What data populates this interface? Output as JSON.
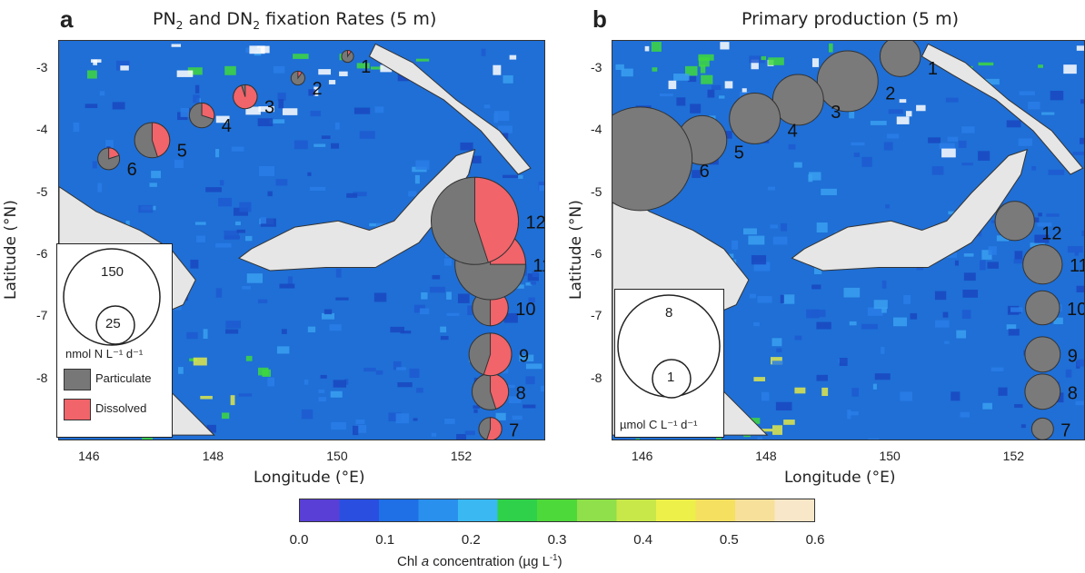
{
  "colors": {
    "ocean": "#1f6fd6",
    "ocean_dark": "#1a4fc4",
    "land": "#e6e6e6",
    "particulate": "#777777",
    "dissolved": "#f0646a",
    "bubble_b": "#7a7a7a"
  },
  "panel_a": {
    "letter": "a",
    "title_pre": "PN",
    "title_sub1": "2",
    "title_mid": " and DN",
    "title_sub2": "2",
    "title_post": " fixation Rates (5 m)",
    "x_axis_label": "Longitude (°E)",
    "y_axis_label": "Latitude (°N)",
    "x_ticks": [
      "146",
      "148",
      "150",
      "152"
    ],
    "y_ticks": [
      "-3",
      "-4",
      "-5",
      "-6",
      "-7",
      "-8"
    ],
    "legend": {
      "big_value": "150",
      "small_value": "25",
      "unit": "nmol  N L⁻¹ d⁻¹",
      "particulate_label": "Particulate",
      "dissolved_label": "Dissolved"
    },
    "stations": [
      {
        "id": "1",
        "lon": 150.15,
        "lat": -2.8,
        "total": 3,
        "dissolved_frac": 0.1
      },
      {
        "id": "2",
        "lon": 149.35,
        "lat": -3.15,
        "total": 4,
        "dissolved_frac": 0.1
      },
      {
        "id": "3",
        "lon": 148.5,
        "lat": -3.45,
        "total": 12,
        "dissolved_frac": 0.95
      },
      {
        "id": "4",
        "lon": 147.8,
        "lat": -3.75,
        "total": 13,
        "dissolved_frac": 0.3
      },
      {
        "id": "5",
        "lon": 147.0,
        "lat": -4.15,
        "total": 26,
        "dissolved_frac": 0.45
      },
      {
        "id": "6",
        "lon": 146.3,
        "lat": -4.45,
        "total": 10,
        "dissolved_frac": 0.2
      },
      {
        "id": "7",
        "lon": 152.45,
        "lat": -8.8,
        "total": 11,
        "dissolved_frac": 0.55
      },
      {
        "id": "8",
        "lon": 152.45,
        "lat": -8.2,
        "total": 28,
        "dissolved_frac": 0.45
      },
      {
        "id": "9",
        "lon": 152.45,
        "lat": -7.6,
        "total": 38,
        "dissolved_frac": 0.55
      },
      {
        "id": "10",
        "lon": 152.45,
        "lat": -6.85,
        "total": 27,
        "dissolved_frac": 0.5
      },
      {
        "id": "11",
        "lon": 152.45,
        "lat": -6.15,
        "total": 105,
        "dissolved_frac": 0.25
      },
      {
        "id": "12",
        "lon": 152.2,
        "lat": -5.45,
        "total": 160,
        "dissolved_frac": 0.45
      }
    ]
  },
  "panel_b": {
    "letter": "b",
    "title": "Primary production (5 m)",
    "x_axis_label": "Longitude (°E)",
    "y_axis_label": "Latitude (°N)",
    "x_ticks": [
      "146",
      "148",
      "150",
      "152"
    ],
    "y_ticks": [
      "-3",
      "-4",
      "-5",
      "-6",
      "-7",
      "-8"
    ],
    "legend": {
      "big_value": "8",
      "small_value": "1",
      "unit": "µmol  C L⁻¹ d⁻¹"
    },
    "stations": [
      {
        "id": "1",
        "lon": 150.15,
        "lat": -2.8,
        "value": 1.9
      },
      {
        "id": "2",
        "lon": 149.3,
        "lat": -3.2,
        "value": 4.3
      },
      {
        "id": "3",
        "lon": 148.5,
        "lat": -3.5,
        "value": 3.0
      },
      {
        "id": "4",
        "lon": 147.8,
        "lat": -3.8,
        "value": 3.0
      },
      {
        "id": "5",
        "lon": 146.95,
        "lat": -4.15,
        "value": 2.8
      },
      {
        "id": "6",
        "lon": 145.95,
        "lat": -4.45,
        "value": 12.5
      },
      {
        "id": "7",
        "lon": 152.45,
        "lat": -8.8,
        "value": 0.55
      },
      {
        "id": "8",
        "lon": 152.45,
        "lat": -8.2,
        "value": 1.45
      },
      {
        "id": "9",
        "lon": 152.45,
        "lat": -7.6,
        "value": 1.45
      },
      {
        "id": "10",
        "lon": 152.45,
        "lat": -6.85,
        "value": 1.35
      },
      {
        "id": "11",
        "lon": 152.45,
        "lat": -6.15,
        "value": 1.8
      },
      {
        "id": "12",
        "lon": 152.0,
        "lat": -5.45,
        "value": 1.8
      }
    ]
  },
  "colorbar": {
    "ticks": [
      "0.0",
      "0.1",
      "0.2",
      "0.3",
      "0.4",
      "0.5",
      "0.6"
    ],
    "label_pre": "Chl ",
    "label_italic": "a",
    "label_post": " concentration (µg L",
    "label_sup": "-1",
    "label_end": ")",
    "stops": [
      "#5a3fd6",
      "#2a4fe0",
      "#1f6fe6",
      "#2a90ee",
      "#3ab8f2",
      "#2fd14a",
      "#4ed93a",
      "#8fe04a",
      "#c8e84a",
      "#eef04a",
      "#f5e060",
      "#f6e09a",
      "#f8e7c8"
    ]
  }
}
